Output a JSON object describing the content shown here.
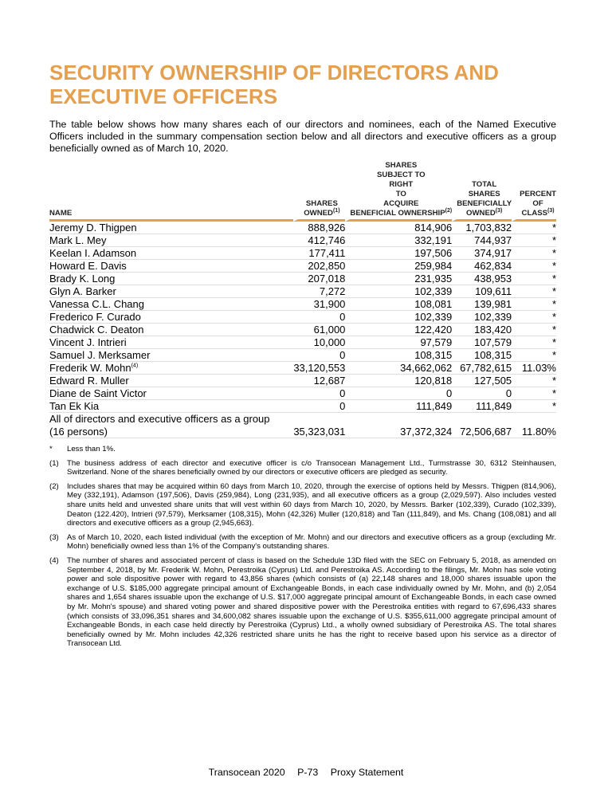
{
  "title": "SECURITY OWNERSHIP OF DIRECTORS AND EXECUTIVE OFFICERS",
  "intro": "The table below shows how many shares each of our directors and nominees, each of the Named Executive Officers included in the summary compensation section below and all directors and executive officers as a group beneficially owned as of March 10, 2020.",
  "accent_color": "#E4A04E",
  "table": {
    "headers": [
      {
        "label": "NAME",
        "sup": ""
      },
      {
        "label": "SHARES OWNED",
        "sup": "(1)"
      },
      {
        "label": "SHARES SUBJECT TO RIGHT TO ACQUIRE BENEFICIAL OWNERSHIP",
        "sup": "(2)"
      },
      {
        "label": "TOTAL SHARES BENEFICIALLY OWNED",
        "sup": "(3)"
      },
      {
        "label": "PERCENT OF CLASS",
        "sup": "(3)"
      }
    ],
    "rows": [
      {
        "name": "Jeremy D. Thigpen",
        "sup": "",
        "owned": "888,926",
        "right": "814,906",
        "total": "1,703,832",
        "percent": "*"
      },
      {
        "name": "Mark L. Mey",
        "sup": "",
        "owned": "412,746",
        "right": "332,191",
        "total": "744,937",
        "percent": "*"
      },
      {
        "name": "Keelan I. Adamson",
        "sup": "",
        "owned": "177,411",
        "right": "197,506",
        "total": "374,917",
        "percent": "*"
      },
      {
        "name": "Howard E. Davis",
        "sup": "",
        "owned": "202,850",
        "right": "259,984",
        "total": "462,834",
        "percent": "*"
      },
      {
        "name": "Brady K. Long",
        "sup": "",
        "owned": "207,018",
        "right": "231,935",
        "total": "438,953",
        "percent": "*"
      },
      {
        "name": "Glyn A. Barker",
        "sup": "",
        "owned": "7,272",
        "right": "102,339",
        "total": "109,611",
        "percent": "*"
      },
      {
        "name": "Vanessa C.L. Chang",
        "sup": "",
        "owned": "31,900",
        "right": "108,081",
        "total": "139,981",
        "percent": "*"
      },
      {
        "name": "Frederico F. Curado",
        "sup": "",
        "owned": "0",
        "right": "102,339",
        "total": "102,339",
        "percent": "*"
      },
      {
        "name": "Chadwick C. Deaton",
        "sup": "",
        "owned": "61,000",
        "right": "122,420",
        "total": "183,420",
        "percent": "*"
      },
      {
        "name": "Vincent J. Intrieri",
        "sup": "",
        "owned": "10,000",
        "right": "97,579",
        "total": "107,579",
        "percent": "*"
      },
      {
        "name": "Samuel J. Merksamer",
        "sup": "",
        "owned": "0",
        "right": "108,315",
        "total": "108,315",
        "percent": "*"
      },
      {
        "name": "Frederik W. Mohn",
        "sup": "(4)",
        "owned": "33,120,553",
        "right": "34,662,062",
        "total": "67,782,615",
        "percent": "11.03%"
      },
      {
        "name": "Edward R. Muller",
        "sup": "",
        "owned": "12,687",
        "right": "120,818",
        "total": "127,505",
        "percent": "*"
      },
      {
        "name": "Diane de Saint Victor",
        "sup": "",
        "owned": "0",
        "right": "0",
        "total": "0",
        "percent": "*"
      },
      {
        "name": "Tan Ek Kia",
        "sup": "",
        "owned": "0",
        "right": "111,849",
        "total": "111,849",
        "percent": "*"
      }
    ],
    "group_row": {
      "name_line1": "All of directors and executive officers as a group",
      "name_line2": "(16 persons)",
      "owned": "35,323,031",
      "right": "37,372,324",
      "total": "72,506,687",
      "percent": "11.80%"
    }
  },
  "footnotes": [
    {
      "mark": "*",
      "text": "Less than 1%."
    },
    {
      "mark": "(1)",
      "text": "The business address of each director and executive officer is c/o Transocean Management Ltd., Turmstrasse 30, 6312 Steinhausen, Switzerland. None of the shares beneficially owned by our directors or executive officers are pledged as security."
    },
    {
      "mark": "(2)",
      "text": "Includes shares that may be acquired within 60 days from March 10, 2020, through the exercise of options held by Messrs. Thigpen (814,906), Mey (332,191), Adamson (197,506), Davis (259,984), Long (231,935), and all executive officers as a group (2,029,597). Also includes vested share units held and unvested share units that will vest within 60 days from March 10, 2020, by Messrs. Barker (102,339), Curado (102,339), Deaton (122.420), Intrieri (97,579), Merksamer (108,315), Mohn (42,326) Muller (120,818) and Tan (111,849), and Ms. Chang (108,081) and all directors and executive officers as a group (2,945,663)."
    },
    {
      "mark": "(3)",
      "text": "As of March 10, 2020, each listed individual (with the exception of Mr. Mohn) and our directors and executive officers as a group (excluding Mr. Mohn) beneficially owned less than 1% of the Company's outstanding shares."
    },
    {
      "mark": "(4)",
      "text": "The number of shares and associated percent of class is based on the Schedule 13D filed with the SEC on February 5, 2018, as amended on September 4, 2018, by Mr. Frederik W. Mohn, Perestroika (Cyprus) Ltd. and Perestroika AS. According to the filings, Mr. Mohn has sole voting power and sole dispositive power with regard to 43,856 shares (which consists of (a) 22,148 shares and 18,000 shares issuable upon the exchange of U.S. $185,000 aggregate principal amount of Exchangeable Bonds, in each case individually owned by Mr. Mohn, and (b) 2,054 shares and 1,654 shares issuable upon the exchange of U.S. $17,000 aggregate principal amount of Exchangeable Bonds, in each case owned by Mr. Mohn's spouse) and shared voting power and shared dispositive power with the Perestroika entities with regard to 67,696,433 shares (which consists of 33,096,351 shares and 34,600,082 shares issuable upon the exchange of U.S. $355,611,000 aggregate principal amount of Exchangeable Bonds, in each case held directly by Perestroika (Cyprus) Ltd., a wholly owned subsidiary of Perestroika AS. The total shares beneficially owned by Mr. Mohn includes 42,326 restricted share units he has the right to receive based upon his service as a director of Transocean Ltd."
    }
  ],
  "footer": {
    "company": "Transocean 2020",
    "page": "P-73",
    "doc": "Proxy Statement"
  }
}
